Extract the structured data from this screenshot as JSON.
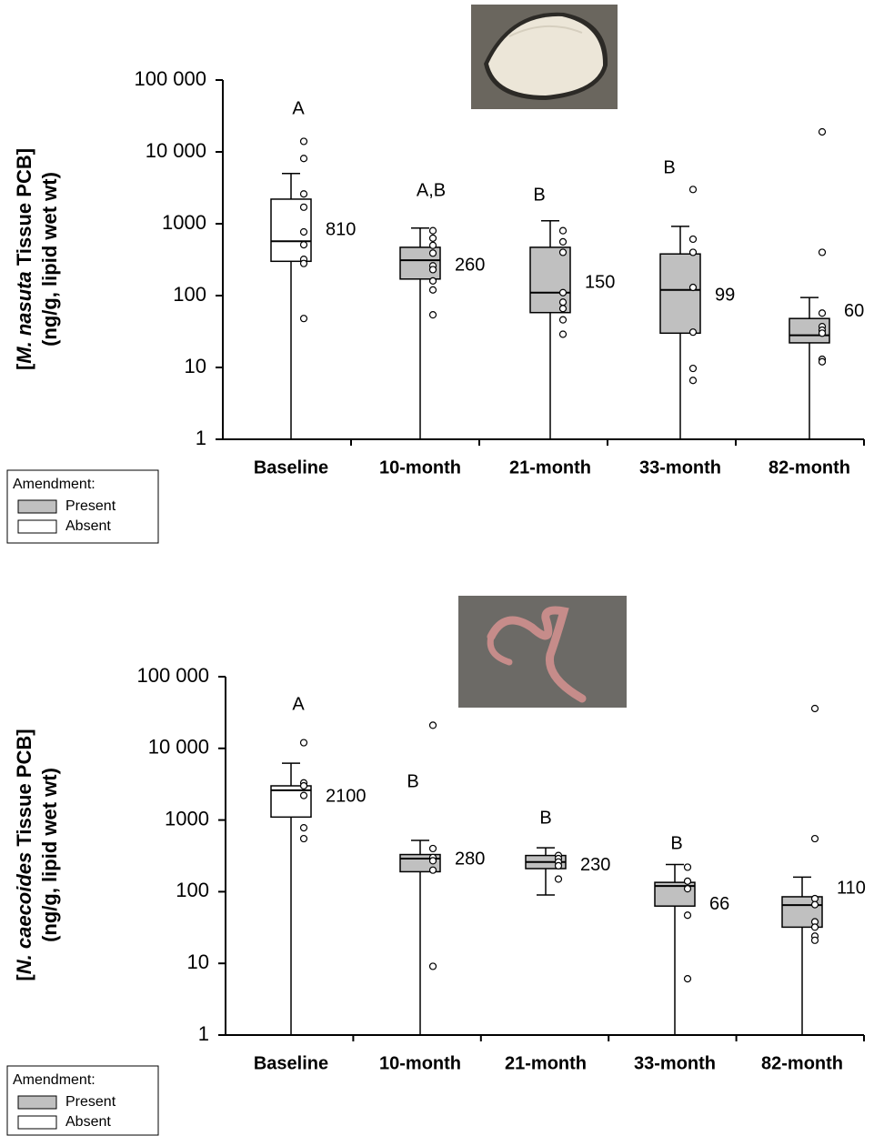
{
  "chart_data": [
    {
      "type": "box",
      "ylabel": [
        "[",
        "M. nasuta",
        " Tissue PCB]"
      ],
      "ylabel2": "(ng/g, lipid wet wt)",
      "categories": [
        "Baseline",
        "10-month",
        "21-month",
        "33-month",
        "82-month"
      ],
      "box_colors": [
        "#ffffff",
        "#c0c0c0",
        "#c0c0c0",
        "#c0c0c0",
        "#c0c0c0"
      ],
      "boxes": [
        {
          "whislo": 1,
          "q1": 300,
          "med": 570,
          "q3": 2200,
          "whishi": 5000,
          "points": [
            14000,
            8100,
            2600,
            1700,
            770,
            510,
            320,
            280,
            48
          ]
        },
        {
          "whislo": 1,
          "q1": 170,
          "med": 310,
          "q3": 470,
          "whishi": 870,
          "points": [
            800,
            630,
            500,
            390,
            260,
            230,
            160,
            120,
            54
          ]
        },
        {
          "whislo": 1,
          "q1": 58,
          "med": 110,
          "q3": 470,
          "whishi": 1100,
          "points": [
            800,
            560,
            400,
            110,
            81,
            66,
            46,
            29
          ]
        },
        {
          "whislo": 1,
          "q1": 30,
          "med": 120,
          "q3": 380,
          "whishi": 920,
          "points": [
            3000,
            610,
            400,
            130,
            31,
            9.7,
            6.6
          ]
        },
        {
          "whislo": 1,
          "q1": 22,
          "med": 28,
          "q3": 48,
          "whishi": 94,
          "points": [
            19000,
            400,
            57,
            37,
            33,
            30,
            13,
            12
          ]
        }
      ],
      "means": [
        810,
        260,
        150,
        99,
        60
      ],
      "letters": [
        "A",
        "A,B",
        "B",
        "B",
        null
      ],
      "log_scale": true,
      "ylim": [
        1,
        100000
      ],
      "yticks": [
        {
          "value": 100000,
          "label": "100 000"
        },
        {
          "value": 10000,
          "label": "10 000"
        },
        1000,
        100,
        10,
        1
      ],
      "legend": {
        "title": "Amendment:",
        "items": [
          {
            "name": "Present",
            "color": "#c0c0c0"
          },
          {
            "name": "Absent",
            "color": "#ffffff"
          }
        ]
      }
    },
    {
      "type": "box",
      "ylabel": [
        "[",
        "N. caecoides",
        " Tissue PCB]"
      ],
      "ylabel2": "(ng/g, lipid wet wt)",
      "categories": [
        "Baseline",
        "10-month",
        "21-month",
        "33-month",
        "82-month"
      ],
      "box_colors": [
        "#ffffff",
        "#c0c0c0",
        "#c0c0c0",
        "#c0c0c0",
        "#c0c0c0"
      ],
      "boxes": [
        {
          "whislo": 1,
          "q1": 1100,
          "med": 2600,
          "q3": 3000,
          "whishi": 6200,
          "points": [
            12000,
            3300,
            3000,
            2200,
            780,
            550
          ]
        },
        {
          "whislo": 1,
          "q1": 190,
          "med": 290,
          "q3": 330,
          "whishi": 520,
          "points": [
            21000,
            400,
            300,
            270,
            200,
            9.1
          ]
        },
        {
          "whislo": 90,
          "q1": 210,
          "med": 260,
          "q3": 320,
          "whishi": 410,
          "points": [
            320,
            290,
            260,
            230,
            150
          ]
        },
        {
          "whislo": 1,
          "q1": 63,
          "med": 120,
          "q3": 135,
          "whishi": 240,
          "points": [
            220,
            140,
            110,
            47,
            6.1
          ]
        },
        {
          "whislo": 1,
          "q1": 32,
          "med": 65,
          "q3": 85,
          "whishi": 160,
          "points": [
            36000,
            550,
            80,
            66,
            38,
            32,
            24,
            21
          ]
        }
      ],
      "means": [
        2100,
        280,
        230,
        66,
        110
      ],
      "letters": [
        "A",
        "B",
        "B",
        "B",
        null
      ],
      "log_scale": true,
      "ylim": [
        1,
        100000
      ],
      "yticks": [
        {
          "value": 100000,
          "label": "100 000"
        },
        {
          "value": 10000,
          "label": "10 000"
        },
        1000,
        100,
        10,
        1
      ],
      "legend": {
        "title": "Amendment:",
        "items": [
          {
            "name": "Present",
            "color": "#c0c0c0"
          },
          {
            "name": "Absent",
            "color": "#ffffff"
          }
        ]
      }
    }
  ]
}
